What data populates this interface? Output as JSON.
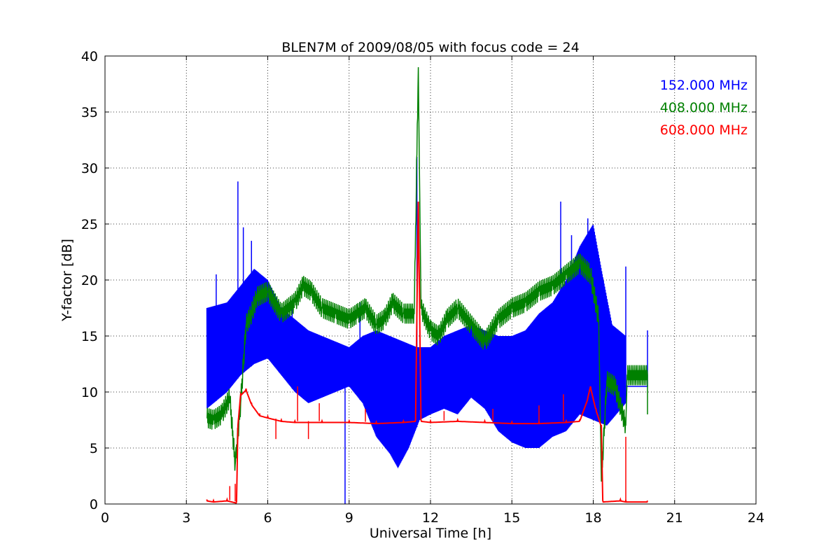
{
  "chart_data": {
    "type": "line",
    "title": "BLEN7M of 2009/08/05 with focus code = 24",
    "xlabel": "Universal Time [h]",
    "ylabel": "Y-factor [dB]",
    "xlim": [
      0,
      24
    ],
    "ylim": [
      0,
      40
    ],
    "xticks": [
      0,
      3,
      6,
      9,
      12,
      15,
      18,
      21,
      24
    ],
    "yticks": [
      0,
      5,
      10,
      15,
      20,
      25,
      30,
      35,
      40
    ],
    "xtick_labels": [
      "0",
      "3",
      "6",
      "9",
      "12",
      "15",
      "18",
      "21",
      "24"
    ],
    "ytick_labels": [
      "0",
      "5",
      "10",
      "15",
      "20",
      "25",
      "30",
      "35",
      "40"
    ],
    "grid": true,
    "legend_position": "top-right",
    "series": [
      {
        "name": "152.000 MHz",
        "color": "#0000ff",
        "lower_envelope": [
          [
            3.75,
            8.5
          ],
          [
            4.5,
            10.0
          ],
          [
            5.0,
            11.5
          ],
          [
            5.5,
            12.5
          ],
          [
            6.0,
            13.0
          ],
          [
            6.5,
            11.5
          ],
          [
            7.0,
            10.0
          ],
          [
            7.5,
            9.0
          ],
          [
            8.0,
            9.5
          ],
          [
            8.5,
            10.0
          ],
          [
            9.0,
            10.5
          ],
          [
            9.5,
            9.0
          ],
          [
            10.0,
            6.0
          ],
          [
            10.5,
            4.5
          ],
          [
            10.8,
            3.2
          ],
          [
            11.2,
            5.0
          ],
          [
            11.6,
            7.5
          ],
          [
            12.0,
            8.0
          ],
          [
            12.5,
            8.5
          ],
          [
            13.0,
            8.0
          ],
          [
            13.5,
            9.5
          ],
          [
            14.0,
            8.5
          ],
          [
            14.5,
            6.5
          ],
          [
            15.0,
            5.5
          ],
          [
            15.5,
            5.0
          ],
          [
            16.0,
            5.0
          ],
          [
            16.5,
            6.0
          ],
          [
            17.0,
            6.5
          ],
          [
            17.5,
            8.0
          ],
          [
            18.0,
            7.5
          ],
          [
            18.5,
            7.0
          ],
          [
            19.2,
            9.0
          ]
        ],
        "upper_envelope": [
          [
            3.75,
            17.5
          ],
          [
            4.5,
            18.0
          ],
          [
            5.0,
            19.5
          ],
          [
            5.5,
            21.0
          ],
          [
            6.0,
            20.0
          ],
          [
            6.5,
            17.5
          ],
          [
            7.0,
            16.5
          ],
          [
            7.5,
            15.5
          ],
          [
            8.0,
            15.0
          ],
          [
            8.5,
            14.5
          ],
          [
            9.0,
            14.0
          ],
          [
            9.5,
            15.0
          ],
          [
            10.0,
            15.5
          ],
          [
            10.5,
            15.0
          ],
          [
            11.0,
            14.5
          ],
          [
            11.5,
            14.0
          ],
          [
            12.0,
            14.0
          ],
          [
            12.5,
            15.0
          ],
          [
            13.0,
            15.5
          ],
          [
            13.5,
            16.0
          ],
          [
            14.0,
            15.5
          ],
          [
            14.5,
            15.0
          ],
          [
            15.0,
            15.0
          ],
          [
            15.5,
            15.5
          ],
          [
            16.0,
            17.0
          ],
          [
            16.5,
            18.0
          ],
          [
            17.0,
            20.0
          ],
          [
            17.5,
            23.0
          ],
          [
            18.0,
            25.0
          ],
          [
            18.3,
            21.0
          ],
          [
            18.7,
            16.0
          ],
          [
            19.2,
            15.0
          ]
        ],
        "spikes": [
          [
            4.1,
            20.5
          ],
          [
            4.9,
            28.8
          ],
          [
            5.1,
            24.7
          ],
          [
            5.4,
            23.5
          ],
          [
            6.9,
            18.5
          ],
          [
            9.4,
            18.0
          ],
          [
            11.5,
            31.0
          ],
          [
            16.8,
            27.0
          ],
          [
            17.2,
            24.0
          ],
          [
            17.8,
            25.5
          ],
          [
            19.2,
            21.2
          ],
          [
            8.85,
            0.0
          ]
        ],
        "tail": [
          [
            19.2,
            10.5
          ],
          [
            20.0,
            10.5
          ],
          [
            20.0,
            15.5
          ]
        ]
      },
      {
        "name": "408.000 MHz",
        "color": "#008000",
        "points": [
          [
            3.75,
            7.7
          ],
          [
            4.0,
            7.5
          ],
          [
            4.3,
            8.0
          ],
          [
            4.6,
            9.5
          ],
          [
            4.8,
            3.5
          ],
          [
            5.0,
            9.0
          ],
          [
            5.2,
            16.0
          ],
          [
            5.4,
            17.0
          ],
          [
            5.6,
            18.5
          ],
          [
            6.0,
            19.0
          ],
          [
            6.5,
            17.0
          ],
          [
            7.0,
            18.0
          ],
          [
            7.3,
            19.5
          ],
          [
            7.6,
            19.0
          ],
          [
            8.0,
            17.5
          ],
          [
            8.5,
            17.0
          ],
          [
            9.0,
            16.5
          ],
          [
            9.3,
            17.0
          ],
          [
            9.6,
            17.5
          ],
          [
            10.0,
            16.0
          ],
          [
            10.3,
            16.5
          ],
          [
            10.6,
            18.0
          ],
          [
            11.0,
            17.0
          ],
          [
            11.4,
            17.0
          ],
          [
            11.55,
            39.0
          ],
          [
            11.65,
            17.5
          ],
          [
            12.0,
            15.5
          ],
          [
            12.3,
            15.0
          ],
          [
            12.6,
            16.5
          ],
          [
            13.0,
            17.5
          ],
          [
            13.5,
            16.0
          ],
          [
            14.0,
            14.5
          ],
          [
            14.5,
            16.5
          ],
          [
            15.0,
            17.5
          ],
          [
            15.5,
            18.0
          ],
          [
            16.0,
            19.0
          ],
          [
            16.5,
            19.5
          ],
          [
            17.0,
            20.5
          ],
          [
            17.5,
            21.5
          ],
          [
            17.9,
            20.5
          ],
          [
            18.2,
            16.5
          ],
          [
            18.3,
            2.0
          ],
          [
            18.5,
            11.0
          ],
          [
            18.8,
            10.5
          ],
          [
            19.2,
            7.0
          ],
          [
            19.25,
            11.5
          ],
          [
            20.0,
            11.5
          ],
          [
            20.0,
            8.0
          ]
        ]
      },
      {
        "name": "608.000 MHz",
        "color": "#ff0000",
        "points": [
          [
            3.75,
            0.4
          ],
          [
            4.0,
            0.3
          ],
          [
            4.5,
            0.4
          ],
          [
            4.85,
            0.2
          ],
          [
            4.9,
            7.0
          ],
          [
            5.0,
            9.8
          ],
          [
            5.2,
            10.3
          ],
          [
            5.4,
            9.0
          ],
          [
            5.7,
            8.0
          ],
          [
            6.0,
            7.8
          ],
          [
            6.5,
            7.5
          ],
          [
            7.0,
            7.4
          ],
          [
            8.0,
            7.4
          ],
          [
            9.0,
            7.4
          ],
          [
            10.0,
            7.3
          ],
          [
            11.0,
            7.4
          ],
          [
            11.45,
            7.5
          ],
          [
            11.55,
            27.0
          ],
          [
            11.65,
            7.5
          ],
          [
            12.0,
            7.4
          ],
          [
            13.0,
            7.5
          ],
          [
            14.0,
            7.4
          ],
          [
            15.0,
            7.3
          ],
          [
            16.0,
            7.3
          ],
          [
            17.0,
            7.4
          ],
          [
            17.5,
            7.5
          ],
          [
            17.8,
            9.5
          ],
          [
            17.9,
            10.5
          ],
          [
            18.1,
            8.5
          ],
          [
            18.3,
            7.0
          ],
          [
            18.35,
            0.3
          ],
          [
            19.0,
            0.4
          ],
          [
            19.2,
            0.3
          ],
          [
            20.0,
            0.3
          ]
        ],
        "spikes": [
          [
            4.6,
            1.6
          ],
          [
            4.8,
            1.8
          ],
          [
            6.3,
            5.8
          ],
          [
            7.1,
            10.5
          ],
          [
            7.5,
            5.8
          ],
          [
            7.9,
            9.0
          ],
          [
            9.6,
            8.5
          ],
          [
            12.5,
            8.3
          ],
          [
            14.3,
            8.5
          ],
          [
            16.0,
            8.8
          ],
          [
            16.9,
            9.8
          ],
          [
            19.2,
            6.0
          ]
        ]
      }
    ]
  }
}
